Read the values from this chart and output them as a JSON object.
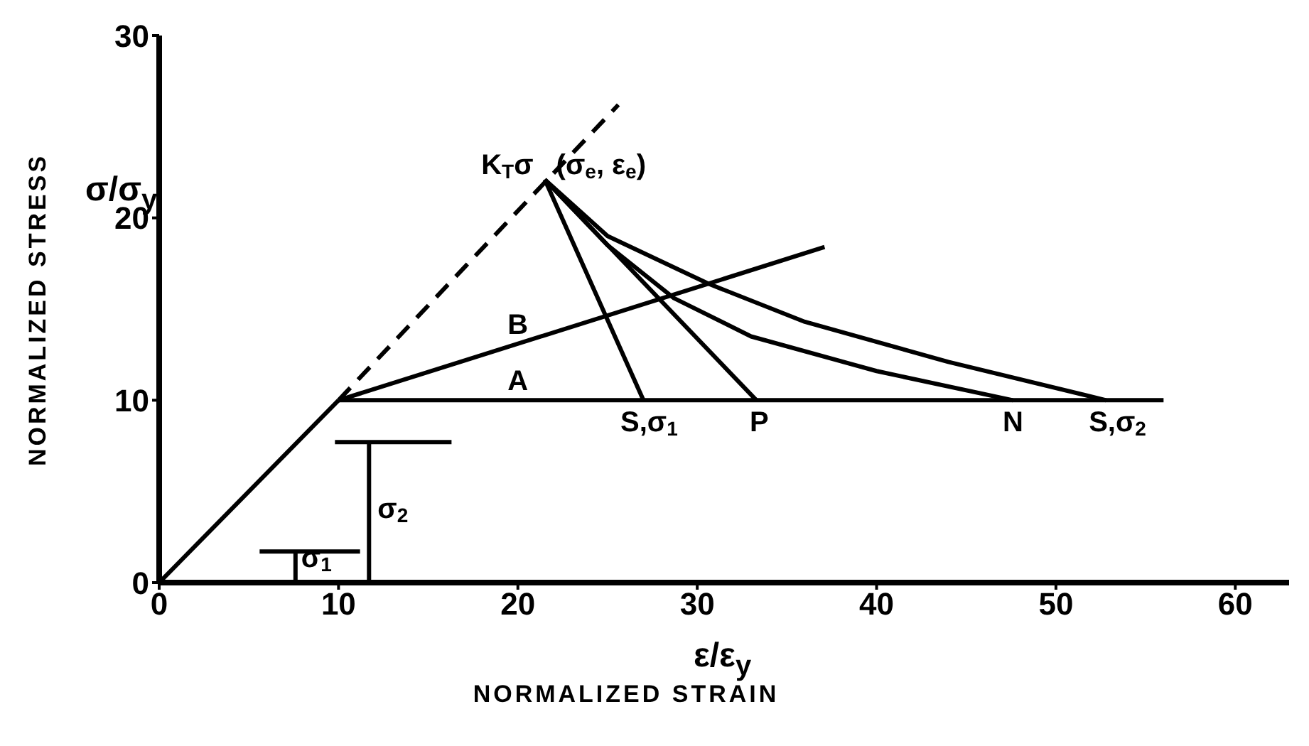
{
  "chart_data": {
    "type": "line",
    "xlabel": "NORMALIZED STRAIN",
    "ylabel": "NORMALIZED STRESS",
    "xlim": [
      0,
      63
    ],
    "ylim": [
      0,
      30
    ],
    "xticks": [
      0,
      10,
      20,
      30,
      40,
      50,
      60
    ],
    "yticks": [
      0,
      10,
      20,
      30
    ],
    "grid": false,
    "marker": "none",
    "series": [
      {
        "color": "#000000",
        "x": [
          0,
          10
        ],
        "values": [
          0,
          10
        ]
      },
      {
        "color": "#000000",
        "line_style": "dashed",
        "x": [
          10,
          25.6
        ],
        "values": [
          10,
          26.2
        ]
      },
      {
        "color": "#000000",
        "x": [
          10,
          56
        ],
        "values": [
          10,
          10
        ]
      },
      {
        "color": "#000000",
        "x": [
          10,
          37.1
        ],
        "values": [
          10,
          18.4
        ]
      },
      {
        "color": "#000000",
        "x": [
          21.5,
          27
        ],
        "values": [
          22.1,
          10
        ]
      },
      {
        "color": "#000000",
        "x": [
          21.5,
          33.3
        ],
        "values": [
          22.1,
          10
        ]
      },
      {
        "color": "#000000",
        "x": [
          21.5,
          25,
          28.7,
          33,
          40,
          47.6
        ],
        "values": [
          22.1,
          18.5,
          15.6,
          13.5,
          11.6,
          10
        ]
      },
      {
        "color": "#000000",
        "x": [
          21.5,
          25,
          30.6,
          36,
          44,
          52.8
        ],
        "values": [
          22.1,
          19,
          16.4,
          14.3,
          12.1,
          10
        ]
      },
      {
        "color": "#000000",
        "x": [
          5.6,
          11.2,
          null,
          7.6,
          7.6
        ],
        "values": [
          1.7,
          1.7,
          null,
          1.7,
          0
        ]
      },
      {
        "color": "#000000",
        "x": [
          9.8,
          16.3,
          null,
          11.7,
          11.7
        ],
        "values": [
          7.7,
          7.7,
          null,
          7.7,
          0
        ]
      }
    ],
    "annotations": [
      {
        "text": "K$_{T}$σ",
        "x": 21.5,
        "y": 22.1
      },
      {
        "text": "(σ$_{e}$, ε$_{e}$)",
        "x": 21.5,
        "y": 22.1
      },
      {
        "text": "A",
        "x": 20,
        "y": 10
      },
      {
        "text": "B",
        "x": 20,
        "y": 13.1
      },
      {
        "text": "S,σ$_{1}$",
        "x": 27,
        "y": 10
      },
      {
        "text": "P",
        "x": 33.3,
        "y": 10
      },
      {
        "text": "N",
        "x": 47.6,
        "y": 10
      },
      {
        "text": "S,σ$_{2}$",
        "x": 52.8,
        "y": 10
      },
      {
        "text": "σ$_{1}$",
        "x": 7.6,
        "y": 0
      },
      {
        "text": "σ$_{2}$",
        "x": 11.7,
        "y": 4
      },
      "σ/σ$_{y}$",
      "ε/ε$_{y}$"
    ]
  }
}
